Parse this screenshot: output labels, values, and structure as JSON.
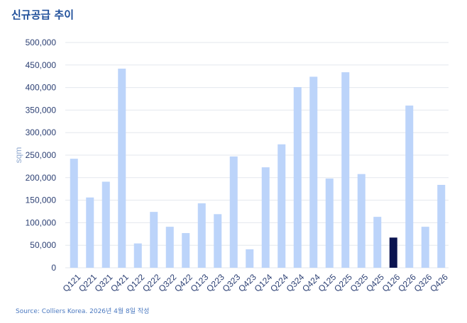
{
  "title": "신규공급 추이",
  "source": "Source: Colliers Korea. 2026년 4월 8일 작성",
  "chart_data": {
    "type": "bar",
    "title": "신규공급 추이",
    "xlabel": "",
    "ylabel": "sqm",
    "ylim": [
      0,
      500000
    ],
    "yticks": [
      0,
      50000,
      100000,
      150000,
      200000,
      250000,
      300000,
      350000,
      400000,
      450000,
      500000
    ],
    "ytick_labels": [
      "0",
      "50,000",
      "100,000",
      "150,000",
      "200,000",
      "250,000",
      "300,000",
      "350,000",
      "400,000",
      "450,000",
      "500,000"
    ],
    "grid": true,
    "categories": [
      "Q121",
      "Q221",
      "Q321",
      "Q421",
      "Q122",
      "Q222",
      "Q322",
      "Q422",
      "Q123",
      "Q223",
      "Q323",
      "Q423",
      "Q124",
      "Q224",
      "Q324",
      "Q424",
      "Q125",
      "Q225",
      "Q325",
      "Q425",
      "Q126",
      "Q226",
      "Q326",
      "Q426"
    ],
    "values": [
      242000,
      156000,
      191000,
      442000,
      54000,
      124000,
      91000,
      77000,
      143000,
      119000,
      247000,
      41000,
      223000,
      274000,
      401000,
      424000,
      198000,
      434000,
      208000,
      113000,
      67000,
      360000,
      91000,
      184000
    ],
    "highlight_category": "Q126",
    "colors": {
      "bar": "#bcd4fa",
      "highlight": "#0b1450",
      "grid": "#e3e7ee",
      "axis_text": "#2b3f73"
    }
  }
}
